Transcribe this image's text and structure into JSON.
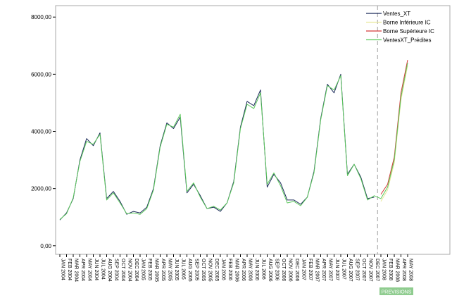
{
  "chart_data": {
    "type": "line",
    "x": [
      "JAN 2004",
      "FEB 2004",
      "MAR 2004",
      "APR 2004",
      "MAY 2004",
      "JUN 2004",
      "JUL 2004",
      "AUG 2004",
      "SEP 2004",
      "OCT 2004",
      "NOV 2004",
      "DEC 2004",
      "JAN 2005",
      "FEB 2005",
      "MAR 2005",
      "APR 2005",
      "MAY 2005",
      "JUN 2005",
      "JUL 2005",
      "AUG 2005",
      "SEP 2005",
      "OCT 2005",
      "NOV 2005",
      "DEC 2005",
      "JAN 2006",
      "FEB 2006",
      "MAR 2006",
      "APR 2006",
      "MAY 2006",
      "JUN 2006",
      "JUL 2006",
      "AUG 2006",
      "SEP 2006",
      "OCT 2006",
      "NOV 2006",
      "DEC 2006",
      "JAN 2007",
      "FEB 2007",
      "MAR 2007",
      "APR 2007",
      "MAY 2007",
      "JUN 2007",
      "JUL 2007",
      "AUG 2007",
      "SEP 2007",
      "OCT 2007",
      "NOV 2007",
      "DEC 2007",
      "JAN 2008",
      "FEB 2008",
      "MAR 2008",
      "APR 2008",
      "MAY 2008"
    ],
    "yticks": [
      0,
      2000,
      4000,
      6000,
      8000
    ],
    "ytick_labels": [
      "0,00",
      "2000,00",
      "4000,00",
      "6000,00",
      "8000,00"
    ],
    "ylim": [
      -300,
      8400
    ],
    "forecast_start_index": 48,
    "forecast_label": "PREVISIONS",
    "forecast_label_color": "#8fcc8f",
    "divider_after_index": 47,
    "legend_position": "top-right",
    "series": [
      {
        "name": "Ventes_XT",
        "color": "#1c2a5a",
        "values": [
          900,
          1150,
          1650,
          3000,
          3750,
          3500,
          3950,
          1650,
          1900,
          1550,
          1100,
          1200,
          1150,
          1350,
          2000,
          3500,
          4300,
          4100,
          4500,
          1850,
          2150,
          1750,
          1300,
          1350,
          1200,
          1500,
          2250,
          4150,
          5050,
          4900,
          5450,
          2050,
          2500,
          2200,
          1600,
          1600,
          1450,
          1700,
          2600,
          4450,
          5650,
          5350,
          6000,
          2500,
          2850,
          2400,
          1650,
          1700,
          null,
          null,
          null,
          null,
          null
        ]
      },
      {
        "name": "Borne Inférieure IC",
        "color": "#e8e89a",
        "values": [
          null,
          null,
          null,
          null,
          null,
          null,
          null,
          null,
          null,
          null,
          null,
          null,
          null,
          null,
          null,
          null,
          null,
          null,
          null,
          null,
          null,
          null,
          null,
          null,
          null,
          null,
          null,
          null,
          null,
          null,
          null,
          null,
          null,
          null,
          null,
          null,
          null,
          null,
          null,
          null,
          null,
          null,
          null,
          null,
          null,
          null,
          null,
          null,
          1550,
          1950,
          2900,
          5100,
          6300
        ]
      },
      {
        "name": "Borne Supérieure IC",
        "color": "#d43a3a",
        "values": [
          null,
          null,
          null,
          null,
          null,
          null,
          null,
          null,
          null,
          null,
          null,
          null,
          null,
          null,
          null,
          null,
          null,
          null,
          null,
          null,
          null,
          null,
          null,
          null,
          null,
          null,
          null,
          null,
          null,
          null,
          null,
          null,
          null,
          null,
          null,
          null,
          null,
          null,
          null,
          null,
          null,
          null,
          null,
          null,
          null,
          null,
          null,
          null,
          1800,
          2150,
          3100,
          5350,
          6500
        ]
      },
      {
        "name": "VentesXT_Prédites",
        "color": "#5cc95c",
        "values": [
          920,
          1120,
          1680,
          2950,
          3650,
          3550,
          3900,
          1600,
          1850,
          1500,
          1120,
          1150,
          1100,
          1300,
          1950,
          3450,
          4250,
          4150,
          4600,
          1900,
          2200,
          1700,
          1300,
          1380,
          1250,
          1500,
          2200,
          4100,
          4950,
          4800,
          5350,
          2150,
          2550,
          2100,
          1500,
          1550,
          1400,
          1700,
          2550,
          4400,
          5600,
          5450,
          5950,
          2450,
          2850,
          2350,
          1600,
          1750,
          1650,
          2050,
          3000,
          5200,
          6400
        ]
      }
    ]
  }
}
